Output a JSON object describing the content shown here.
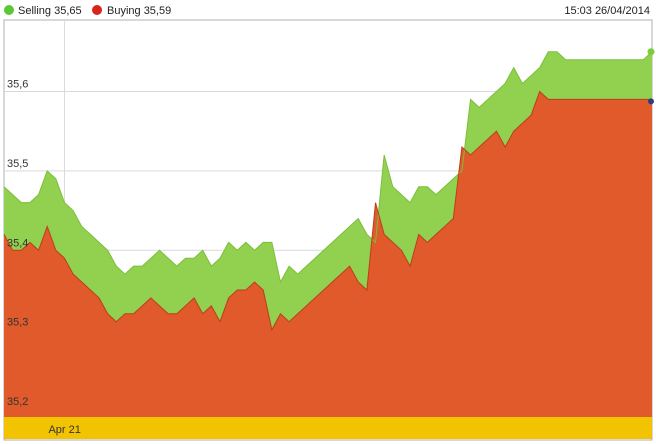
{
  "legend": {
    "selling_label": "Selling 35,65",
    "buying_label": "Buying 35,59",
    "timestamp": "15:03 26/04/2014"
  },
  "chart_data": {
    "type": "area",
    "y_tick_labels": [
      "35,2",
      "35,3",
      "35,4",
      "35,5",
      "35,6"
    ],
    "y_ticks": [
      35.2,
      35.3,
      35.4,
      35.5,
      35.6
    ],
    "ylim": [
      35.19,
      35.69
    ],
    "x_tick_labels": [
      "Apr 21"
    ],
    "x_tick_positions": [
      7
    ],
    "x_count": 76,
    "grid": true,
    "legend_position": "top-left",
    "series": [
      {
        "name": "Selling",
        "color": "#92d050",
        "values": [
          35.48,
          35.47,
          35.46,
          35.46,
          35.47,
          35.5,
          35.49,
          35.46,
          35.45,
          35.43,
          35.42,
          35.41,
          35.4,
          35.38,
          35.37,
          35.38,
          35.38,
          35.39,
          35.4,
          35.39,
          35.38,
          35.39,
          35.39,
          35.4,
          35.38,
          35.39,
          35.41,
          35.4,
          35.41,
          35.4,
          35.41,
          35.41,
          35.36,
          35.38,
          35.37,
          35.38,
          35.39,
          35.4,
          35.41,
          35.42,
          35.43,
          35.44,
          35.42,
          35.41,
          35.52,
          35.48,
          35.47,
          35.46,
          35.48,
          35.48,
          35.47,
          35.48,
          35.49,
          35.5,
          35.59,
          35.58,
          35.59,
          35.6,
          35.61,
          35.63,
          35.61,
          35.62,
          35.63,
          35.65,
          35.65,
          35.64,
          35.64,
          35.64,
          35.64,
          35.64,
          35.64,
          35.64,
          35.64,
          35.64,
          35.64,
          35.65
        ]
      },
      {
        "name": "Buying",
        "color": "#e05a2b",
        "values": [
          35.42,
          35.4,
          35.4,
          35.41,
          35.4,
          35.43,
          35.4,
          35.39,
          35.37,
          35.36,
          35.35,
          35.34,
          35.32,
          35.31,
          35.32,
          35.32,
          35.33,
          35.34,
          35.33,
          35.32,
          35.32,
          35.33,
          35.34,
          35.32,
          35.33,
          35.31,
          35.34,
          35.35,
          35.35,
          35.36,
          35.35,
          35.3,
          35.32,
          35.31,
          35.32,
          35.33,
          35.34,
          35.35,
          35.36,
          35.37,
          35.38,
          35.36,
          35.35,
          35.46,
          35.42,
          35.41,
          35.4,
          35.38,
          35.42,
          35.41,
          35.42,
          35.43,
          35.44,
          35.53,
          35.52,
          35.53,
          35.54,
          35.55,
          35.53,
          35.55,
          35.56,
          35.57,
          35.6,
          35.59,
          35.59,
          35.59,
          35.59,
          35.59,
          35.59,
          35.59,
          35.59,
          35.59,
          35.59,
          35.59,
          35.59,
          35.59
        ]
      }
    ]
  },
  "colors": {
    "background": "#ffffff",
    "grid": "#d9d9d9",
    "frame": "#b0b0b0",
    "timeline": "#f2c300",
    "selling_fill": "#92d050",
    "buying_fill": "#e05a2b",
    "last_point_marker": "#2f3d7a"
  }
}
